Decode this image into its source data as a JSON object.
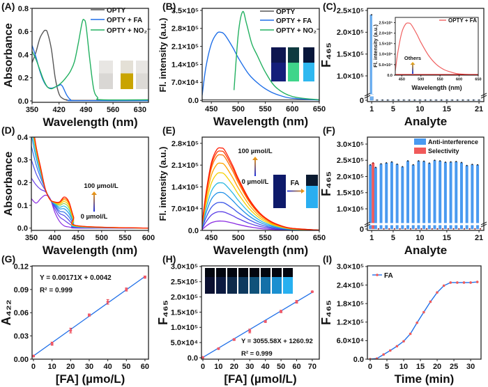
{
  "chart_data": [
    {
      "panel": "(A)",
      "type": "line",
      "xlabel": "Wavelength (nm)",
      "ylabel": "Absorbance",
      "xlim": [
        350,
        652
      ],
      "ylim": [
        -0.012,
        0.8
      ],
      "xticks": [
        350,
        420,
        490,
        560,
        630
      ],
      "xtick_labels": [
        "350",
        "420",
        "490",
        "560",
        "630"
      ],
      "yticks": [
        0,
        0.2,
        0.4,
        0.6,
        0.8
      ],
      "ytick_labels": [
        "0.0",
        "0.2",
        "0.4",
        "0.6",
        "0.8"
      ],
      "legend": "top-right",
      "series": [
        {
          "name": "OPTY",
          "color": "#555555",
          "x": [
            350,
            360,
            370,
            380,
            385,
            390,
            400,
            410,
            420,
            430,
            440,
            460,
            652
          ],
          "y": [
            0.33,
            0.42,
            0.54,
            0.6,
            0.61,
            0.59,
            0.45,
            0.2,
            0.06,
            0.02,
            0.01,
            0.005,
            0.005
          ]
        },
        {
          "name": "OPTY + FA",
          "color": "#1f6fe8",
          "x": [
            350,
            360,
            370,
            380,
            390,
            400,
            410,
            420,
            425,
            430,
            440,
            450,
            460,
            652
          ],
          "y": [
            0.48,
            0.38,
            0.26,
            0.17,
            0.12,
            0.11,
            0.12,
            0.135,
            0.14,
            0.12,
            0.05,
            0.01,
            0.002,
            0.002
          ]
        },
        {
          "name": "OPTY + NO₂⁻",
          "color": "#22b060",
          "x": [
            350,
            360,
            370,
            380,
            390,
            400,
            410,
            420,
            430,
            440,
            450,
            460,
            470,
            480,
            485,
            490,
            500,
            510,
            520,
            530,
            652
          ],
          "y": [
            0.43,
            0.36,
            0.27,
            0.18,
            0.12,
            0.105,
            0.12,
            0.14,
            0.17,
            0.21,
            0.26,
            0.34,
            0.5,
            0.68,
            0.7,
            0.65,
            0.35,
            0.1,
            0.03,
            0.01,
            0.01
          ]
        }
      ]
    },
    {
      "panel": "(B)",
      "type": "line",
      "xlabel": "Wavelength (nm)",
      "ylabel": "Fl. intensity (a.u.)",
      "xlim": [
        433,
        650
      ],
      "ylim": [
        -5000,
        358000
      ],
      "xticks": [
        450,
        500,
        550,
        600,
        650
      ],
      "xtick_labels": [
        "450",
        "500",
        "550",
        "600",
        "650"
      ],
      "yticks": [
        0,
        70000,
        140000,
        210000,
        280000,
        350000
      ],
      "ytick_labels": [
        "0.0",
        "7.0×10⁴",
        "1.4×10⁵",
        "2.1×10⁵",
        "2.8×10⁵",
        "3.5×10⁵"
      ],
      "legend": "top-right",
      "series": [
        {
          "name": "OPTY",
          "color": "#555555",
          "x": [
            433,
            650
          ],
          "y": [
            2000,
            2000
          ]
        },
        {
          "name": "OPTY + FA",
          "color": "#1f6fe8",
          "x": [
            433,
            440,
            450,
            460,
            467,
            475,
            490,
            500,
            520,
            540,
            560,
            580,
            600,
            650
          ],
          "y": [
            20000,
            130000,
            220000,
            260000,
            265000,
            255000,
            205000,
            165000,
            100000,
            60000,
            33000,
            17000,
            8000,
            1000
          ]
        },
        {
          "name": "OPTY + NO₂⁻",
          "color": "#22b060",
          "x": [
            492,
            500,
            508,
            515,
            525,
            535,
            550,
            570,
            600,
            650
          ],
          "y": [
            40000,
            260000,
            345000,
            300000,
            220000,
            175000,
            110000,
            50000,
            15000,
            2000
          ]
        }
      ]
    },
    {
      "panel": "(C)",
      "type": "bar",
      "xlabel": "Analyte",
      "ylabel": "F₄₆₅",
      "xlim": [
        0.2,
        21.9
      ],
      "y_axis_break": true,
      "xticks": [
        1,
        5,
        10,
        15,
        21
      ],
      "xtick_labels": [
        "1",
        "5",
        "10",
        "15",
        "21"
      ],
      "yticks": [
        0,
        100000,
        150000,
        200000,
        250000
      ],
      "ytick_labels": [
        "0",
        "1.0×10⁵",
        "1.5×10⁵",
        "2.0×10⁵",
        "2.5×10⁵"
      ],
      "bar_color": "#6fb1f2",
      "categories": [
        1,
        2,
        3,
        4,
        5,
        6,
        7,
        8,
        9,
        10,
        11,
        12,
        13,
        14,
        15,
        16,
        17,
        18,
        19,
        20,
        21
      ],
      "values": [
        240000,
        2000,
        2000,
        2000,
        2000,
        2000,
        2000,
        2000,
        2000,
        2000,
        2000,
        2000,
        2000,
        2000,
        2000,
        2000,
        2000,
        2000,
        2000,
        2000,
        2000
      ],
      "inset": {
        "type": "line",
        "xlabel": "Wavelength (nm)",
        "ylabel": "Fl. intensity (a.u.)",
        "xlim": [
          433,
          650
        ],
        "ylim": [
          0,
          275000
        ],
        "xticks": [
          450,
          500,
          550,
          600,
          650
        ],
        "xtick_labels": [
          "450",
          "500",
          "550",
          "600",
          "650"
        ],
        "yticks": [
          0,
          50000,
          100000,
          150000,
          200000,
          250000
        ],
        "ytick_labels": [
          "0.0",
          "5.0×10⁴",
          "1.0×10⁵",
          "1.5×10⁵",
          "2.0×10⁵",
          "2.5×10⁵"
        ],
        "annotation": "Others",
        "series": [
          {
            "name": "OPTY + FA",
            "color": "#f06060",
            "x": [
              433,
              440,
              450,
              460,
              468,
              475,
              490,
              500,
              520,
              540,
              560,
              580,
              600,
              650
            ],
            "y": [
              20000,
              112000,
              203000,
              243000,
              248000,
              240000,
              193000,
              156000,
              94000,
              52000,
              27000,
              14000,
              6000,
              700
            ]
          },
          {
            "name": "Others",
            "color": "#d81010",
            "x": [
              433,
              650
            ],
            "y": [
              1500,
              1500
            ]
          }
        ]
      }
    },
    {
      "panel": "(D)",
      "type": "line",
      "xlabel": "Wavelength (nm)",
      "ylabel": "Absorbance",
      "xlim": [
        350,
        600
      ],
      "ylim": [
        -0.01,
        0.4
      ],
      "xticks": [
        350,
        400,
        450,
        500,
        550,
        600
      ],
      "xtick_labels": [
        "350",
        "400",
        "450",
        "500",
        "550",
        "600"
      ],
      "yticks": [
        0,
        0.1,
        0.2,
        0.3,
        0.4
      ],
      "ytick_labels": [
        "0.0",
        "0.1",
        "0.2",
        "0.3",
        "0.4"
      ],
      "annotation_high": "100 µmol/L",
      "annotation_low": "0 µmol/L",
      "x": [
        350,
        360,
        370,
        380,
        390,
        400,
        410,
        420,
        430,
        440,
        450,
        600
      ],
      "colors": [
        "#8a2be2",
        "#6a3de8",
        "#4a4ae8",
        "#2f6fe8",
        "#1e9be8",
        "#2cc0e0",
        "#9ad04a",
        "#f5d000",
        "#ffa500",
        "#ff6000",
        "#ff1a00"
      ],
      "series": [
        {
          "y": [
            0.13,
            0.11,
            0.13,
            0.145,
            0.13,
            0.07,
            0.03,
            0.01,
            0.005,
            0.002,
            0,
            0
          ]
        },
        {
          "y": [
            0.22,
            0.19,
            0.17,
            0.16,
            0.13,
            0.085,
            0.05,
            0.035,
            0.02,
            0.008,
            0.002,
            0
          ]
        },
        {
          "y": [
            0.3,
            0.24,
            0.2,
            0.165,
            0.125,
            0.095,
            0.065,
            0.055,
            0.035,
            0.012,
            0.003,
            0
          ]
        },
        {
          "y": [
            0.36,
            0.28,
            0.22,
            0.17,
            0.125,
            0.1,
            0.075,
            0.07,
            0.05,
            0.018,
            0.004,
            0
          ]
        },
        {
          "y": [
            0.41,
            0.31,
            0.235,
            0.17,
            0.125,
            0.105,
            0.085,
            0.085,
            0.065,
            0.025,
            0.005,
            0
          ]
        },
        {
          "y": [
            0.44,
            0.33,
            0.245,
            0.17,
            0.125,
            0.108,
            0.092,
            0.097,
            0.078,
            0.03,
            0.006,
            0
          ]
        },
        {
          "y": [
            0.46,
            0.34,
            0.25,
            0.17,
            0.125,
            0.11,
            0.1,
            0.108,
            0.09,
            0.035,
            0.007,
            0
          ]
        },
        {
          "y": [
            0.47,
            0.35,
            0.255,
            0.17,
            0.125,
            0.112,
            0.105,
            0.117,
            0.1,
            0.04,
            0.008,
            0
          ]
        },
        {
          "y": [
            0.48,
            0.355,
            0.26,
            0.17,
            0.125,
            0.113,
            0.11,
            0.125,
            0.108,
            0.045,
            0.009,
            0
          ]
        },
        {
          "y": [
            0.49,
            0.36,
            0.26,
            0.17,
            0.125,
            0.114,
            0.113,
            0.131,
            0.113,
            0.048,
            0.01,
            0
          ]
        },
        {
          "y": [
            0.5,
            0.36,
            0.265,
            0.17,
            0.125,
            0.115,
            0.115,
            0.137,
            0.117,
            0.05,
            0.01,
            0
          ]
        }
      ]
    },
    {
      "panel": "(E)",
      "type": "line",
      "xlabel": "Wavelength (nm)",
      "ylabel": "Fl. intensity (a.u.)",
      "xlim": [
        433,
        650
      ],
      "ylim": [
        0,
        300000
      ],
      "xticks": [
        450,
        500,
        550,
        600,
        650
      ],
      "xtick_labels": [
        "450",
        "500",
        "550",
        "600",
        "650"
      ],
      "yticks": [
        0,
        70000,
        140000,
        210000,
        280000
      ],
      "ytick_labels": [
        "0.0",
        "7.0×10⁴",
        "1.4×10⁵",
        "2.1×10⁵",
        "2.8×10⁵"
      ],
      "annotation_high": "100 µmol/L",
      "annotation_low": "0 µmol/L",
      "annotation_arrow": "FA",
      "x": [
        433,
        440,
        450,
        460,
        468,
        475,
        490,
        500,
        520,
        540,
        560,
        580,
        600,
        650
      ],
      "profile": [
        0.08,
        0.45,
        0.82,
        0.98,
        1,
        0.97,
        0.78,
        0.63,
        0.38,
        0.21,
        0.11,
        0.055,
        0.025,
        0.003
      ],
      "peaks": [
        30000,
        60000,
        90000,
        122000,
        153000,
        185000,
        216000,
        243000,
        255000,
        265000
      ],
      "colors": [
        "#8a2be2",
        "#5b3fe6",
        "#3a55e8",
        "#1e8fe8",
        "#2cb8e0",
        "#f5d000",
        "#ffa500",
        "#ff7000",
        "#ff3a00",
        "#ff1a00"
      ]
    },
    {
      "panel": "(F)",
      "type": "bar",
      "xlabel": "Analyte",
      "ylabel": "F₄₆₅",
      "y_axis_break": true,
      "xlim": [
        0.2,
        21.9
      ],
      "xticks": [
        1,
        5,
        10,
        15,
        21
      ],
      "xtick_labels": [
        "1",
        "5",
        "10",
        "15",
        "21"
      ],
      "yticks": [
        0,
        100000,
        150000,
        200000,
        250000,
        300000
      ],
      "ytick_labels": [
        "0",
        "1.0×10⁵",
        "1.5×10⁵",
        "2.0×10⁵",
        "2.5×10⁵",
        "3.0×10⁵"
      ],
      "legend": "top-right",
      "categories": [
        1,
        2,
        3,
        4,
        5,
        6,
        7,
        8,
        9,
        10,
        11,
        12,
        13,
        14,
        15,
        16,
        17,
        18,
        19,
        20,
        21
      ],
      "series": [
        {
          "name": "Anti-interference",
          "color": "#4a9af0",
          "values": [
            236000,
            228000,
            239000,
            242000,
            245000,
            238000,
            230000,
            248000,
            236000,
            248000,
            247000,
            241000,
            250000,
            248000,
            244000,
            245000,
            246000,
            243000,
            234000,
            237000,
            236000
          ]
        },
        {
          "name": "Selectivity",
          "color": "#f05a5a",
          "values": [
            242000,
            2000,
            2000,
            2000,
            2000,
            2000,
            2000,
            2000,
            2000,
            2000,
            2000,
            2000,
            2000,
            2000,
            2000,
            2000,
            2000,
            2000,
            2000,
            2000,
            2000
          ]
        }
      ]
    },
    {
      "panel": "(G)",
      "type": "scatter",
      "xlabel": "[FA] (µmo/L)",
      "ylabel": "A₄₂₂",
      "xlim": [
        -0.75,
        61.9
      ],
      "ylim": [
        0,
        0.1205
      ],
      "xticks": [
        0,
        10,
        20,
        30,
        40,
        50,
        60
      ],
      "xtick_labels": [
        "0",
        "10",
        "20",
        "30",
        "40",
        "50",
        "60"
      ],
      "yticks": [
        0,
        0.03,
        0.06,
        0.09,
        0.12
      ],
      "ytick_labels": [
        "0.00",
        "0.03",
        "0.06",
        "0.09",
        "0.12"
      ],
      "equation": "Y = 0.00171X + 0.0042",
      "r2": "R² = 0.999",
      "fit": {
        "slope": 0.00171,
        "intercept": 0.0042
      },
      "x": [
        0,
        10,
        20,
        30,
        40,
        50,
        60
      ],
      "y": [
        0.004,
        0.02,
        0.037,
        0.057,
        0.074,
        0.09,
        0.106
      ],
      "err": [
        0.001,
        0.002,
        0.003,
        0.0015,
        0.003,
        0.002,
        0.0015
      ]
    },
    {
      "panel": "(H)",
      "type": "scatter",
      "xlabel": "[FA] (µmol/L)",
      "ylabel": "F₄₆₅",
      "xlim": [
        -0.9,
        74.5
      ],
      "ylim": [
        -4600,
        302000
      ],
      "xticks": [
        0,
        10,
        20,
        30,
        40,
        50,
        60,
        70
      ],
      "xtick_labels": [
        "0",
        "10",
        "20",
        "30",
        "40",
        "50",
        "60",
        "70"
      ],
      "yticks": [
        0,
        50000,
        100000,
        150000,
        200000,
        250000,
        300000
      ],
      "ytick_labels": [
        "0.0",
        "5.0×10⁴",
        "1.0×10⁵",
        "1.5×10⁵",
        "2.0×10⁵",
        "2.5×10⁵",
        "3.0×10⁵"
      ],
      "equation": "Y = 3055.58X + 1260.92",
      "r2": "R² = 0.999",
      "fit": {
        "slope": 3055.58,
        "intercept": 1260.92
      },
      "x": [
        0,
        10,
        20,
        30,
        40,
        50,
        60,
        70
      ],
      "y": [
        1000,
        30000,
        60000,
        88000,
        119000,
        152000,
        184000,
        217000
      ],
      "err": [
        1500,
        2000,
        3000,
        6000,
        3000,
        4000,
        4500,
        2000
      ]
    },
    {
      "panel": "(I)",
      "type": "line",
      "xlabel": "Time (min)",
      "ylabel": "F₄₆₅",
      "xlim": [
        -0.83,
        33.1
      ],
      "ylim": [
        0,
        302000
      ],
      "xticks": [
        0,
        5,
        10,
        15,
        20,
        25,
        30
      ],
      "xtick_labels": [
        "0",
        "5",
        "10",
        "15",
        "20",
        "25",
        "30"
      ],
      "yticks": [
        0,
        60000,
        120000,
        180000,
        240000,
        300000
      ],
      "ytick_labels": [
        "0.0",
        "6.0×10⁴",
        "1.2×10⁵",
        "1.8×10⁵",
        "2.4×10⁵",
        "3.0×10⁵"
      ],
      "legend": "top-left",
      "series": [
        {
          "name": "FA",
          "color": "#1f6fe8",
          "marker_color": "#f05a5a",
          "x": [
            0,
            2,
            4,
            6,
            8,
            10,
            12,
            14,
            16,
            18,
            20,
            22,
            24,
            26,
            28,
            30,
            32
          ],
          "y": [
            0,
            2000,
            15000,
            28000,
            42000,
            58000,
            82000,
            118000,
            152000,
            186000,
            216000,
            238000,
            248000,
            248000,
            248000,
            248000,
            250000
          ]
        }
      ]
    }
  ]
}
